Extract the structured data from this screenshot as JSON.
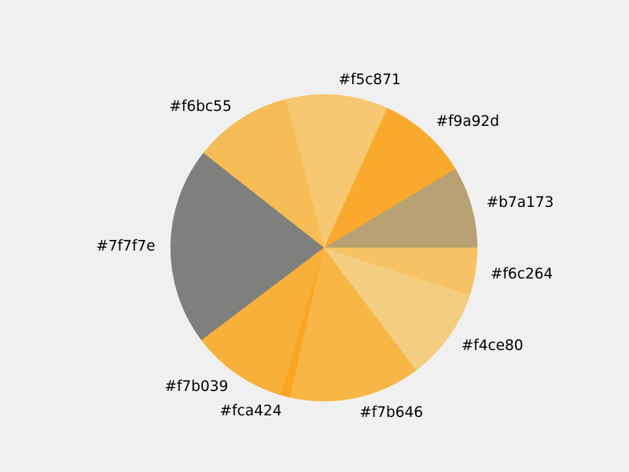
{
  "figure": {
    "background": "#f0f0f0"
  },
  "chart_data": {
    "type": "pie",
    "start_angle_deg": 0,
    "direction": "counterclockwise",
    "labels": [
      "#b7a173",
      "#f9a92d",
      "#f5c871",
      "#f6bc55",
      "#7f7f7e",
      "#f7b039",
      "#fca424",
      "#f7b646",
      "#f4ce80",
      "#f6c264"
    ],
    "values": [
      8.8,
      9.8,
      11.0,
      10.6,
      21.3,
      10.4,
      1.0,
      14.1,
      9.9,
      5.1
    ],
    "colors": [
      "#b7a173",
      "#f9a92d",
      "#f5c871",
      "#f6bc55",
      "#7f7f7e",
      "#f7b039",
      "#fca424",
      "#f7b646",
      "#f4ce80",
      "#f6c264"
    ],
    "legend": "none",
    "title": ""
  }
}
